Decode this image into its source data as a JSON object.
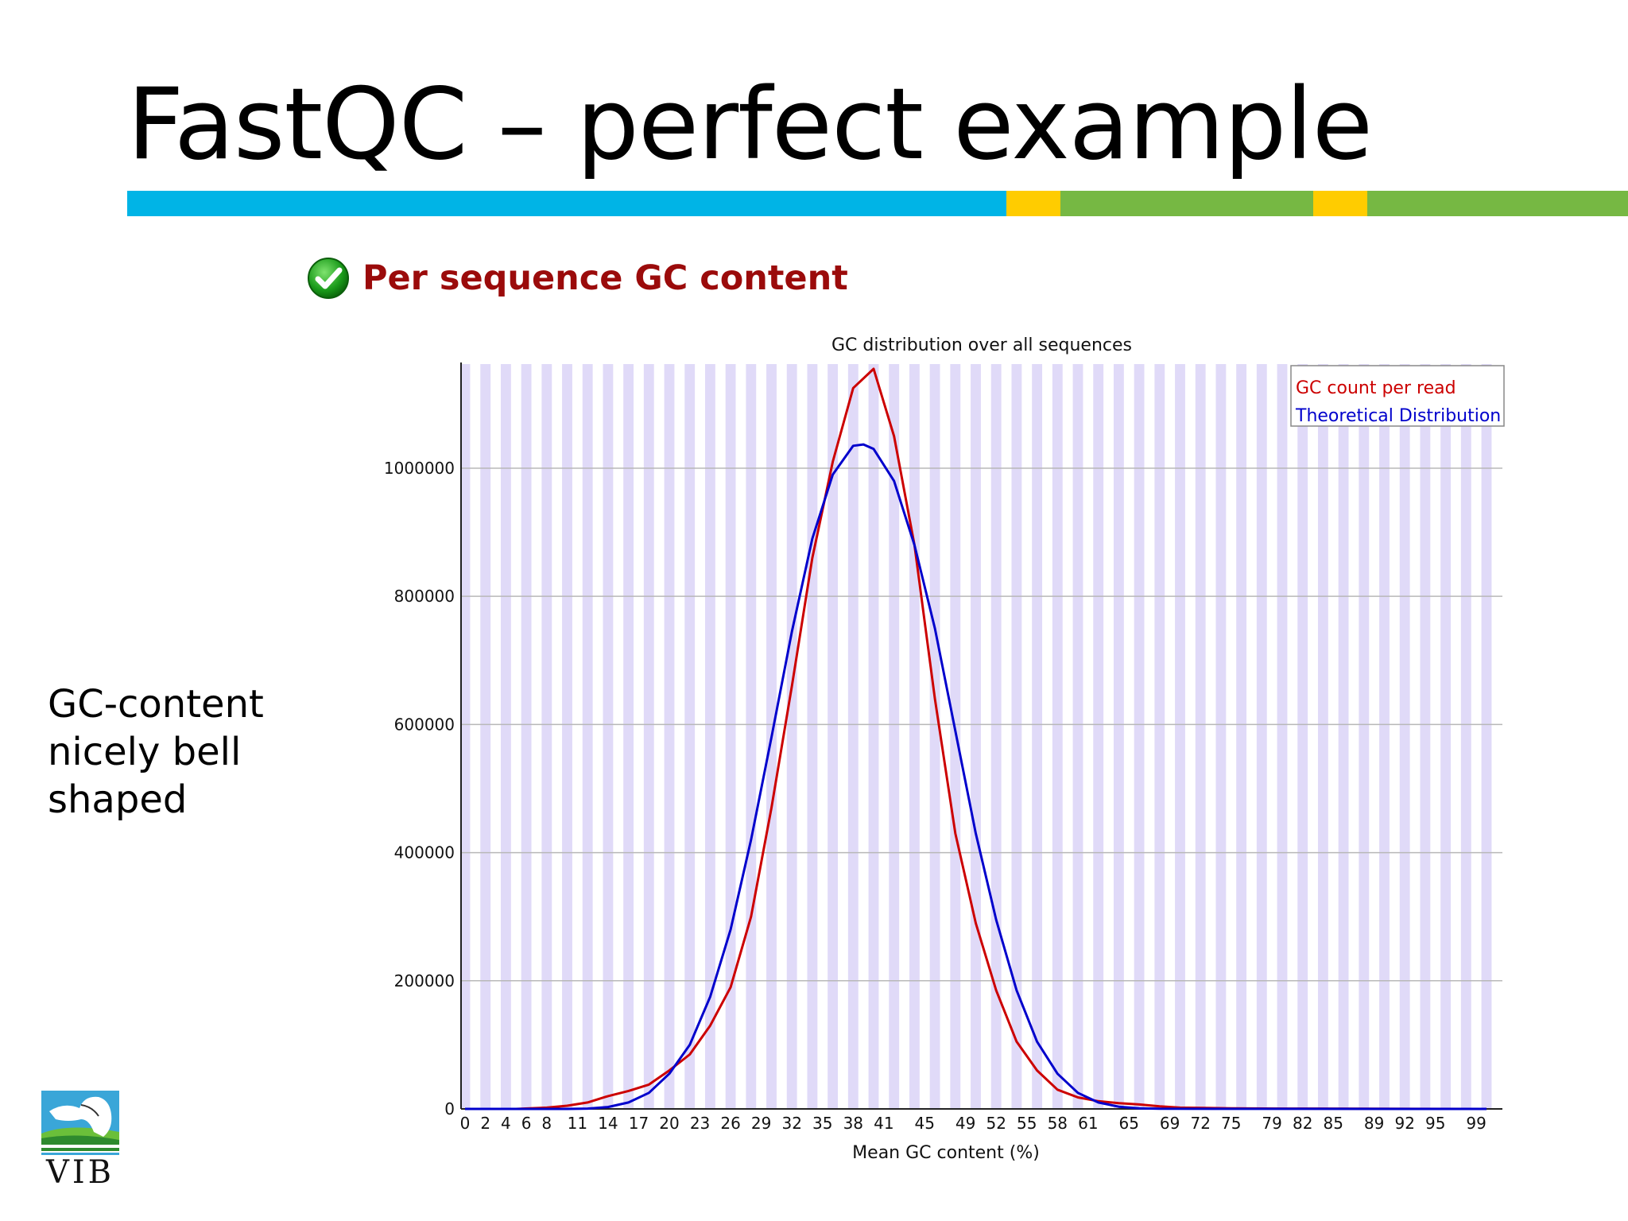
{
  "slide": {
    "title": "FastQC – perfect example",
    "bar_colors": [
      "#00b4e6",
      "#ffcc00",
      "#76b843",
      "#ffcc00",
      "#76b843"
    ],
    "side_text": [
      "GC-content",
      "nicely bell",
      "shaped"
    ],
    "logo_text": "VIB"
  },
  "section": {
    "status_icon": "check-circle-icon",
    "title": "Per sequence GC content",
    "title_color": "#9b0b0b"
  },
  "chart_data": {
    "type": "line",
    "title": "GC distribution over all sequences",
    "xlabel": "Mean GC content (%)",
    "ylabel": "",
    "xlim": [
      0,
      100
    ],
    "ylim": [
      0,
      1160000
    ],
    "x_tick_labels": [
      0,
      2,
      4,
      6,
      8,
      11,
      14,
      17,
      20,
      23,
      26,
      29,
      32,
      35,
      38,
      41,
      45,
      49,
      52,
      55,
      58,
      61,
      65,
      69,
      72,
      75,
      79,
      82,
      85,
      89,
      92,
      95,
      99
    ],
    "y_ticks": [
      0,
      200000,
      400000,
      600000,
      800000,
      1000000
    ],
    "grid": "horizontal",
    "background_stripes": true,
    "legend": "top-right",
    "series": [
      {
        "name": "GC count per read",
        "color": "#cc0000",
        "points": [
          [
            0,
            0
          ],
          [
            5,
            0
          ],
          [
            8,
            2000
          ],
          [
            10,
            5000
          ],
          [
            12,
            10000
          ],
          [
            14,
            20000
          ],
          [
            16,
            28000
          ],
          [
            18,
            38000
          ],
          [
            20,
            60000
          ],
          [
            22,
            85000
          ],
          [
            24,
            130000
          ],
          [
            26,
            190000
          ],
          [
            28,
            300000
          ],
          [
            30,
            470000
          ],
          [
            32,
            660000
          ],
          [
            34,
            860000
          ],
          [
            36,
            1010000
          ],
          [
            38,
            1125000
          ],
          [
            40,
            1155000
          ],
          [
            42,
            1050000
          ],
          [
            44,
            880000
          ],
          [
            46,
            640000
          ],
          [
            48,
            430000
          ],
          [
            50,
            290000
          ],
          [
            52,
            185000
          ],
          [
            54,
            105000
          ],
          [
            56,
            60000
          ],
          [
            58,
            30000
          ],
          [
            60,
            18000
          ],
          [
            62,
            12000
          ],
          [
            64,
            9000
          ],
          [
            66,
            7000
          ],
          [
            68,
            4000
          ],
          [
            70,
            2000
          ],
          [
            75,
            1000
          ],
          [
            80,
            500
          ],
          [
            100,
            0
          ]
        ]
      },
      {
        "name": "Theoretical Distribution",
        "color": "#0000cc",
        "points": [
          [
            0,
            0
          ],
          [
            10,
            0
          ],
          [
            12,
            500
          ],
          [
            14,
            3000
          ],
          [
            16,
            10000
          ],
          [
            18,
            25000
          ],
          [
            20,
            55000
          ],
          [
            22,
            100000
          ],
          [
            24,
            175000
          ],
          [
            26,
            280000
          ],
          [
            28,
            420000
          ],
          [
            30,
            580000
          ],
          [
            32,
            745000
          ],
          [
            34,
            890000
          ],
          [
            36,
            990000
          ],
          [
            38,
            1035000
          ],
          [
            39,
            1037000
          ],
          [
            40,
            1030000
          ],
          [
            42,
            980000
          ],
          [
            44,
            880000
          ],
          [
            46,
            750000
          ],
          [
            48,
            590000
          ],
          [
            50,
            430000
          ],
          [
            52,
            295000
          ],
          [
            54,
            185000
          ],
          [
            56,
            105000
          ],
          [
            58,
            55000
          ],
          [
            60,
            25000
          ],
          [
            62,
            10000
          ],
          [
            64,
            3500
          ],
          [
            66,
            1000
          ],
          [
            68,
            200
          ],
          [
            100,
            0
          ]
        ]
      }
    ]
  }
}
